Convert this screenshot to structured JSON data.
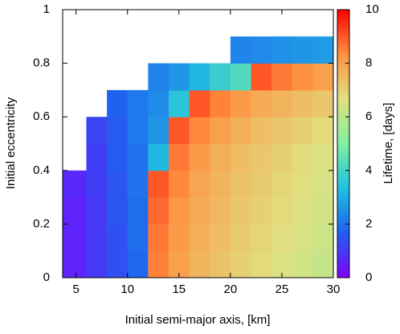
{
  "chart_data": {
    "type": "heatmap",
    "xlabel": "Initial semi-major axis, [km]",
    "ylabel": "Initial eccentricity",
    "colorbar_label": "Lifetime, [days]",
    "xlim": [
      3.7,
      30
    ],
    "ylim": [
      0,
      1
    ],
    "xticks": [
      5,
      10,
      15,
      20,
      25,
      30
    ],
    "yticks": [
      0,
      0.2,
      0.4,
      0.6,
      0.8,
      1
    ],
    "zlim": [
      0,
      10
    ],
    "zticks": [
      0,
      2,
      4,
      6,
      8,
      10
    ],
    "colormap": [
      "#8000ff",
      "#2060f0",
      "#20c0e0",
      "#80f0a0",
      "#e0e080",
      "#ff9040",
      "#ff0000"
    ],
    "x_edges": [
      3.7,
      6,
      8,
      10,
      12,
      14,
      16,
      18,
      20,
      22,
      24,
      26,
      28,
      30
    ],
    "y_edges": [
      0,
      0.1,
      0.2,
      0.3,
      0.4,
      0.5,
      0.6,
      0.7,
      0.8,
      0.9
    ],
    "values": [
      [
        0.6,
        1.0,
        1.4,
        1.8,
        8.5,
        8.0,
        7.6,
        7.3,
        7.0,
        6.8,
        6.6,
        6.4,
        6.2
      ],
      [
        0.6,
        1.0,
        1.4,
        1.9,
        8.6,
        8.1,
        7.7,
        7.4,
        7.1,
        6.9,
        6.7,
        6.5,
        6.3
      ],
      [
        0.6,
        1.0,
        1.5,
        1.9,
        8.8,
        8.2,
        7.8,
        7.5,
        7.2,
        7.0,
        6.8,
        6.6,
        6.4
      ],
      [
        0.7,
        1.1,
        1.5,
        2.0,
        9.0,
        8.4,
        7.9,
        7.6,
        7.3,
        7.1,
        6.9,
        6.7,
        6.5
      ],
      [
        null,
        1.1,
        1.6,
        2.0,
        3.2,
        8.6,
        8.1,
        7.7,
        7.4,
        7.2,
        7.0,
        6.8,
        6.6
      ],
      [
        null,
        1.2,
        1.6,
        2.1,
        2.6,
        9.0,
        8.4,
        8.0,
        7.7,
        7.4,
        7.2,
        7.0,
        6.8
      ],
      [
        null,
        null,
        1.7,
        2.1,
        2.4,
        3.5,
        9.0,
        8.5,
        8.1,
        7.8,
        7.6,
        7.4,
        7.2
      ],
      [
        null,
        null,
        null,
        null,
        2.3,
        2.6,
        3.2,
        3.8,
        4.2,
        9.0,
        8.6,
        8.3,
        8.0
      ],
      [
        null,
        null,
        null,
        null,
        null,
        null,
        null,
        null,
        2.3,
        2.4,
        2.5,
        2.6,
        2.7
      ]
    ]
  }
}
